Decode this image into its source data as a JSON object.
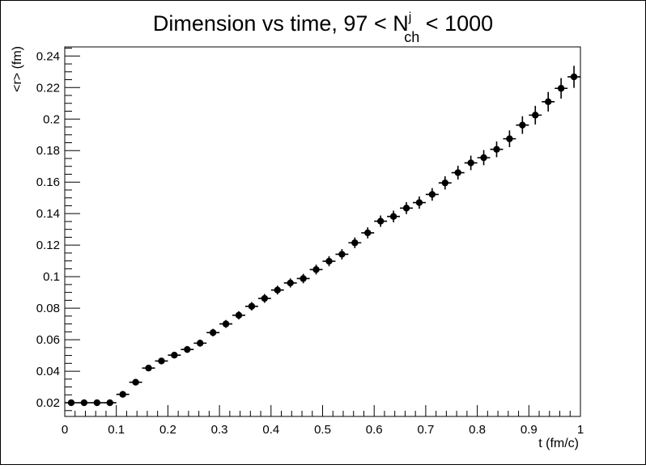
{
  "chart_data": {
    "type": "scatter",
    "title_main": "Dimension vs time, 97 < N",
    "title_sup": "j",
    "title_sub": "ch",
    "title_tail": " < 1000",
    "xlabel": "t (fm/c)",
    "ylabel": "<r> (fm)",
    "xlim": [
      0,
      1
    ],
    "ylim": [
      0.0113,
      0.2458
    ],
    "grid": false,
    "legend": "none",
    "xticks": [
      0,
      0.1,
      0.2,
      0.3,
      0.4,
      0.5,
      0.6,
      0.7,
      0.8,
      0.9,
      1
    ],
    "xtick_labels": [
      "0",
      "0.1",
      "0.2",
      "0.3",
      "0.4",
      "0.5",
      "0.6",
      "0.7",
      "0.8",
      "0.9",
      "1"
    ],
    "yticks": [
      0.02,
      0.04,
      0.06,
      0.08,
      0.1,
      0.12,
      0.14,
      0.16,
      0.18,
      0.2,
      0.22,
      0.24
    ],
    "ytick_labels": [
      "0.02",
      "0.04",
      "0.06",
      "0.08",
      "0.1",
      "0.12",
      "0.14",
      "0.16",
      "0.18",
      "0.2",
      "0.22",
      "0.24"
    ],
    "bin_half_width": 0.0125,
    "points": [
      {
        "x": 0.0125,
        "y": 0.02,
        "err": 0.0
      },
      {
        "x": 0.0375,
        "y": 0.02,
        "err": 0.0
      },
      {
        "x": 0.0625,
        "y": 0.02,
        "err": 0.0
      },
      {
        "x": 0.0875,
        "y": 0.02,
        "err": 0.0
      },
      {
        "x": 0.1125,
        "y": 0.0253,
        "err": 0.0006
      },
      {
        "x": 0.1375,
        "y": 0.033,
        "err": 0.001
      },
      {
        "x": 0.1625,
        "y": 0.042,
        "err": 0.0014
      },
      {
        "x": 0.1875,
        "y": 0.0465,
        "err": 0.0018
      },
      {
        "x": 0.2125,
        "y": 0.0502,
        "err": 0.002
      },
      {
        "x": 0.2375,
        "y": 0.0538,
        "err": 0.0022
      },
      {
        "x": 0.2625,
        "y": 0.0578,
        "err": 0.0022
      },
      {
        "x": 0.2875,
        "y": 0.0645,
        "err": 0.0024
      },
      {
        "x": 0.3125,
        "y": 0.07,
        "err": 0.0025
      },
      {
        "x": 0.3375,
        "y": 0.0755,
        "err": 0.0026
      },
      {
        "x": 0.3625,
        "y": 0.0812,
        "err": 0.0027
      },
      {
        "x": 0.3875,
        "y": 0.0862,
        "err": 0.0028
      },
      {
        "x": 0.4125,
        "y": 0.0915,
        "err": 0.0028
      },
      {
        "x": 0.4375,
        "y": 0.096,
        "err": 0.0029
      },
      {
        "x": 0.4625,
        "y": 0.0988,
        "err": 0.003
      },
      {
        "x": 0.4875,
        "y": 0.1045,
        "err": 0.0031
      },
      {
        "x": 0.5125,
        "y": 0.1098,
        "err": 0.0032
      },
      {
        "x": 0.5375,
        "y": 0.1142,
        "err": 0.0033
      },
      {
        "x": 0.5625,
        "y": 0.1215,
        "err": 0.0034
      },
      {
        "x": 0.5875,
        "y": 0.1278,
        "err": 0.0035
      },
      {
        "x": 0.6125,
        "y": 0.1352,
        "err": 0.0036
      },
      {
        "x": 0.6375,
        "y": 0.1382,
        "err": 0.0037
      },
      {
        "x": 0.6625,
        "y": 0.1435,
        "err": 0.0038
      },
      {
        "x": 0.6875,
        "y": 0.147,
        "err": 0.0039
      },
      {
        "x": 0.7125,
        "y": 0.1522,
        "err": 0.004
      },
      {
        "x": 0.7375,
        "y": 0.1595,
        "err": 0.0042
      },
      {
        "x": 0.7625,
        "y": 0.166,
        "err": 0.0044
      },
      {
        "x": 0.7875,
        "y": 0.1722,
        "err": 0.0046
      },
      {
        "x": 0.8125,
        "y": 0.1755,
        "err": 0.0048
      },
      {
        "x": 0.8375,
        "y": 0.1808,
        "err": 0.005
      },
      {
        "x": 0.8625,
        "y": 0.1875,
        "err": 0.0053
      },
      {
        "x": 0.8875,
        "y": 0.1962,
        "err": 0.0056
      },
      {
        "x": 0.9125,
        "y": 0.2025,
        "err": 0.0059
      },
      {
        "x": 0.9375,
        "y": 0.211,
        "err": 0.0062
      },
      {
        "x": 0.9625,
        "y": 0.2195,
        "err": 0.0065
      },
      {
        "x": 0.9875,
        "y": 0.2268,
        "err": 0.007
      }
    ]
  }
}
